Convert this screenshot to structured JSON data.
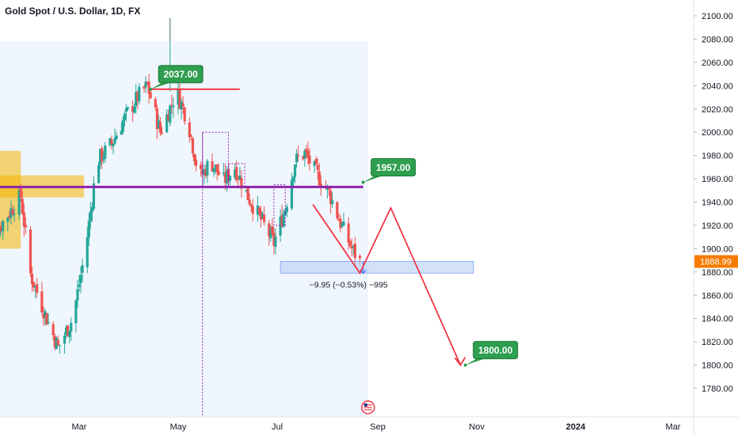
{
  "chart_data": {
    "type": "candlestick",
    "title": "Gold Spot / U.S. Dollar, 1D, FX",
    "colors": {
      "up": "#26a69a",
      "down": "#ef5350",
      "accent": "#f57c00",
      "callout": "#2e9e4f",
      "purple": "#8e24aa",
      "red": "#f23645",
      "zone": "#f4b400",
      "blue": "#2962ff",
      "highlight": "#e3eefc"
    },
    "y_axis": {
      "ylim": [
        1776,
        2112
      ],
      "ticks": [
        1780,
        1800,
        1820,
        1840,
        1860,
        1880,
        1900,
        1920,
        1940,
        1960,
        1980,
        2000,
        2020,
        2040,
        2060,
        2080,
        2100
      ],
      "tick_labels": [
        "1780.00",
        "1800.00",
        "1820.00",
        "1840.00",
        "1860.00",
        "1880.00",
        "1900.00",
        "1920.00",
        "1940.00",
        "1960.00",
        "1980.00",
        "2000.00",
        "2020.00",
        "2040.00",
        "2060.00",
        "2080.00",
        "2100.00"
      ]
    },
    "x_axis": {
      "ticks": [
        {
          "label": "Mar",
          "day": 58
        },
        {
          "label": "May",
          "day": 119
        },
        {
          "label": "Jul",
          "day": 180
        },
        {
          "label": "Sep",
          "day": 242
        },
        {
          "label": "Nov",
          "day": 303
        },
        {
          "label": "2024",
          "day": 364,
          "bold": true
        },
        {
          "label": "Mar",
          "day": 424
        }
      ]
    },
    "last_price": "1888.99",
    "callouts": [
      {
        "label": "2037.00",
        "value": 2037.0,
        "day": 102
      },
      {
        "label": "1957.00",
        "value": 1957.0,
        "day": 233
      },
      {
        "label": "1800.00",
        "value": 1800.0,
        "day": 296
      }
    ],
    "horizontal_levels": [
      {
        "value": 2037.0,
        "from_day": 102,
        "to_day": 157,
        "color": "red"
      },
      {
        "value": 1953.0,
        "from_day": 0,
        "to_day": 233,
        "color": "purple"
      }
    ],
    "measure": {
      "top": 1889,
      "bottom": 1879,
      "from_day": 182,
      "to_day": 301,
      "label": "−9.95 (−0.53%) −995"
    },
    "projection": [
      [
        202,
        1938
      ],
      [
        231,
        1879
      ],
      [
        250,
        1935
      ],
      [
        293,
        1800
      ]
    ],
    "supply_zones": [
      {
        "from_day": 0,
        "to_day": 22,
        "top": 1984,
        "bottom": 1900
      },
      {
        "from_day": 0,
        "to_day": 61,
        "top": 1963,
        "bottom": 1944
      }
    ],
    "event_marker_day": 236,
    "series_ohlc": {
      "start_day": 0,
      "anchors": [
        [
          0,
          1900
        ],
        [
          12,
          1925
        ],
        [
          22,
          1945
        ],
        [
          28,
          1878
        ],
        [
          38,
          1840
        ],
        [
          45,
          1815
        ],
        [
          54,
          1840
        ],
        [
          62,
          1900
        ],
        [
          69,
          1975
        ],
        [
          78,
          1990
        ],
        [
          85,
          2010
        ],
        [
          94,
          2030
        ],
        [
          100,
          2040
        ],
        [
          108,
          2000
        ],
        [
          118,
          2035
        ],
        [
          125,
          2010
        ],
        [
          132,
          1960
        ],
        [
          139,
          1975
        ],
        [
          147,
          1958
        ],
        [
          154,
          1970
        ],
        [
          162,
          1945
        ],
        [
          170,
          1925
        ],
        [
          178,
          1905
        ],
        [
          185,
          1935
        ],
        [
          191,
          1975
        ],
        [
          197,
          1982
        ],
        [
          204,
          1965
        ],
        [
          212,
          1948
        ],
        [
          219,
          1922
        ],
        [
          226,
          1900
        ],
        [
          231,
          1889
        ]
      ]
    }
  }
}
